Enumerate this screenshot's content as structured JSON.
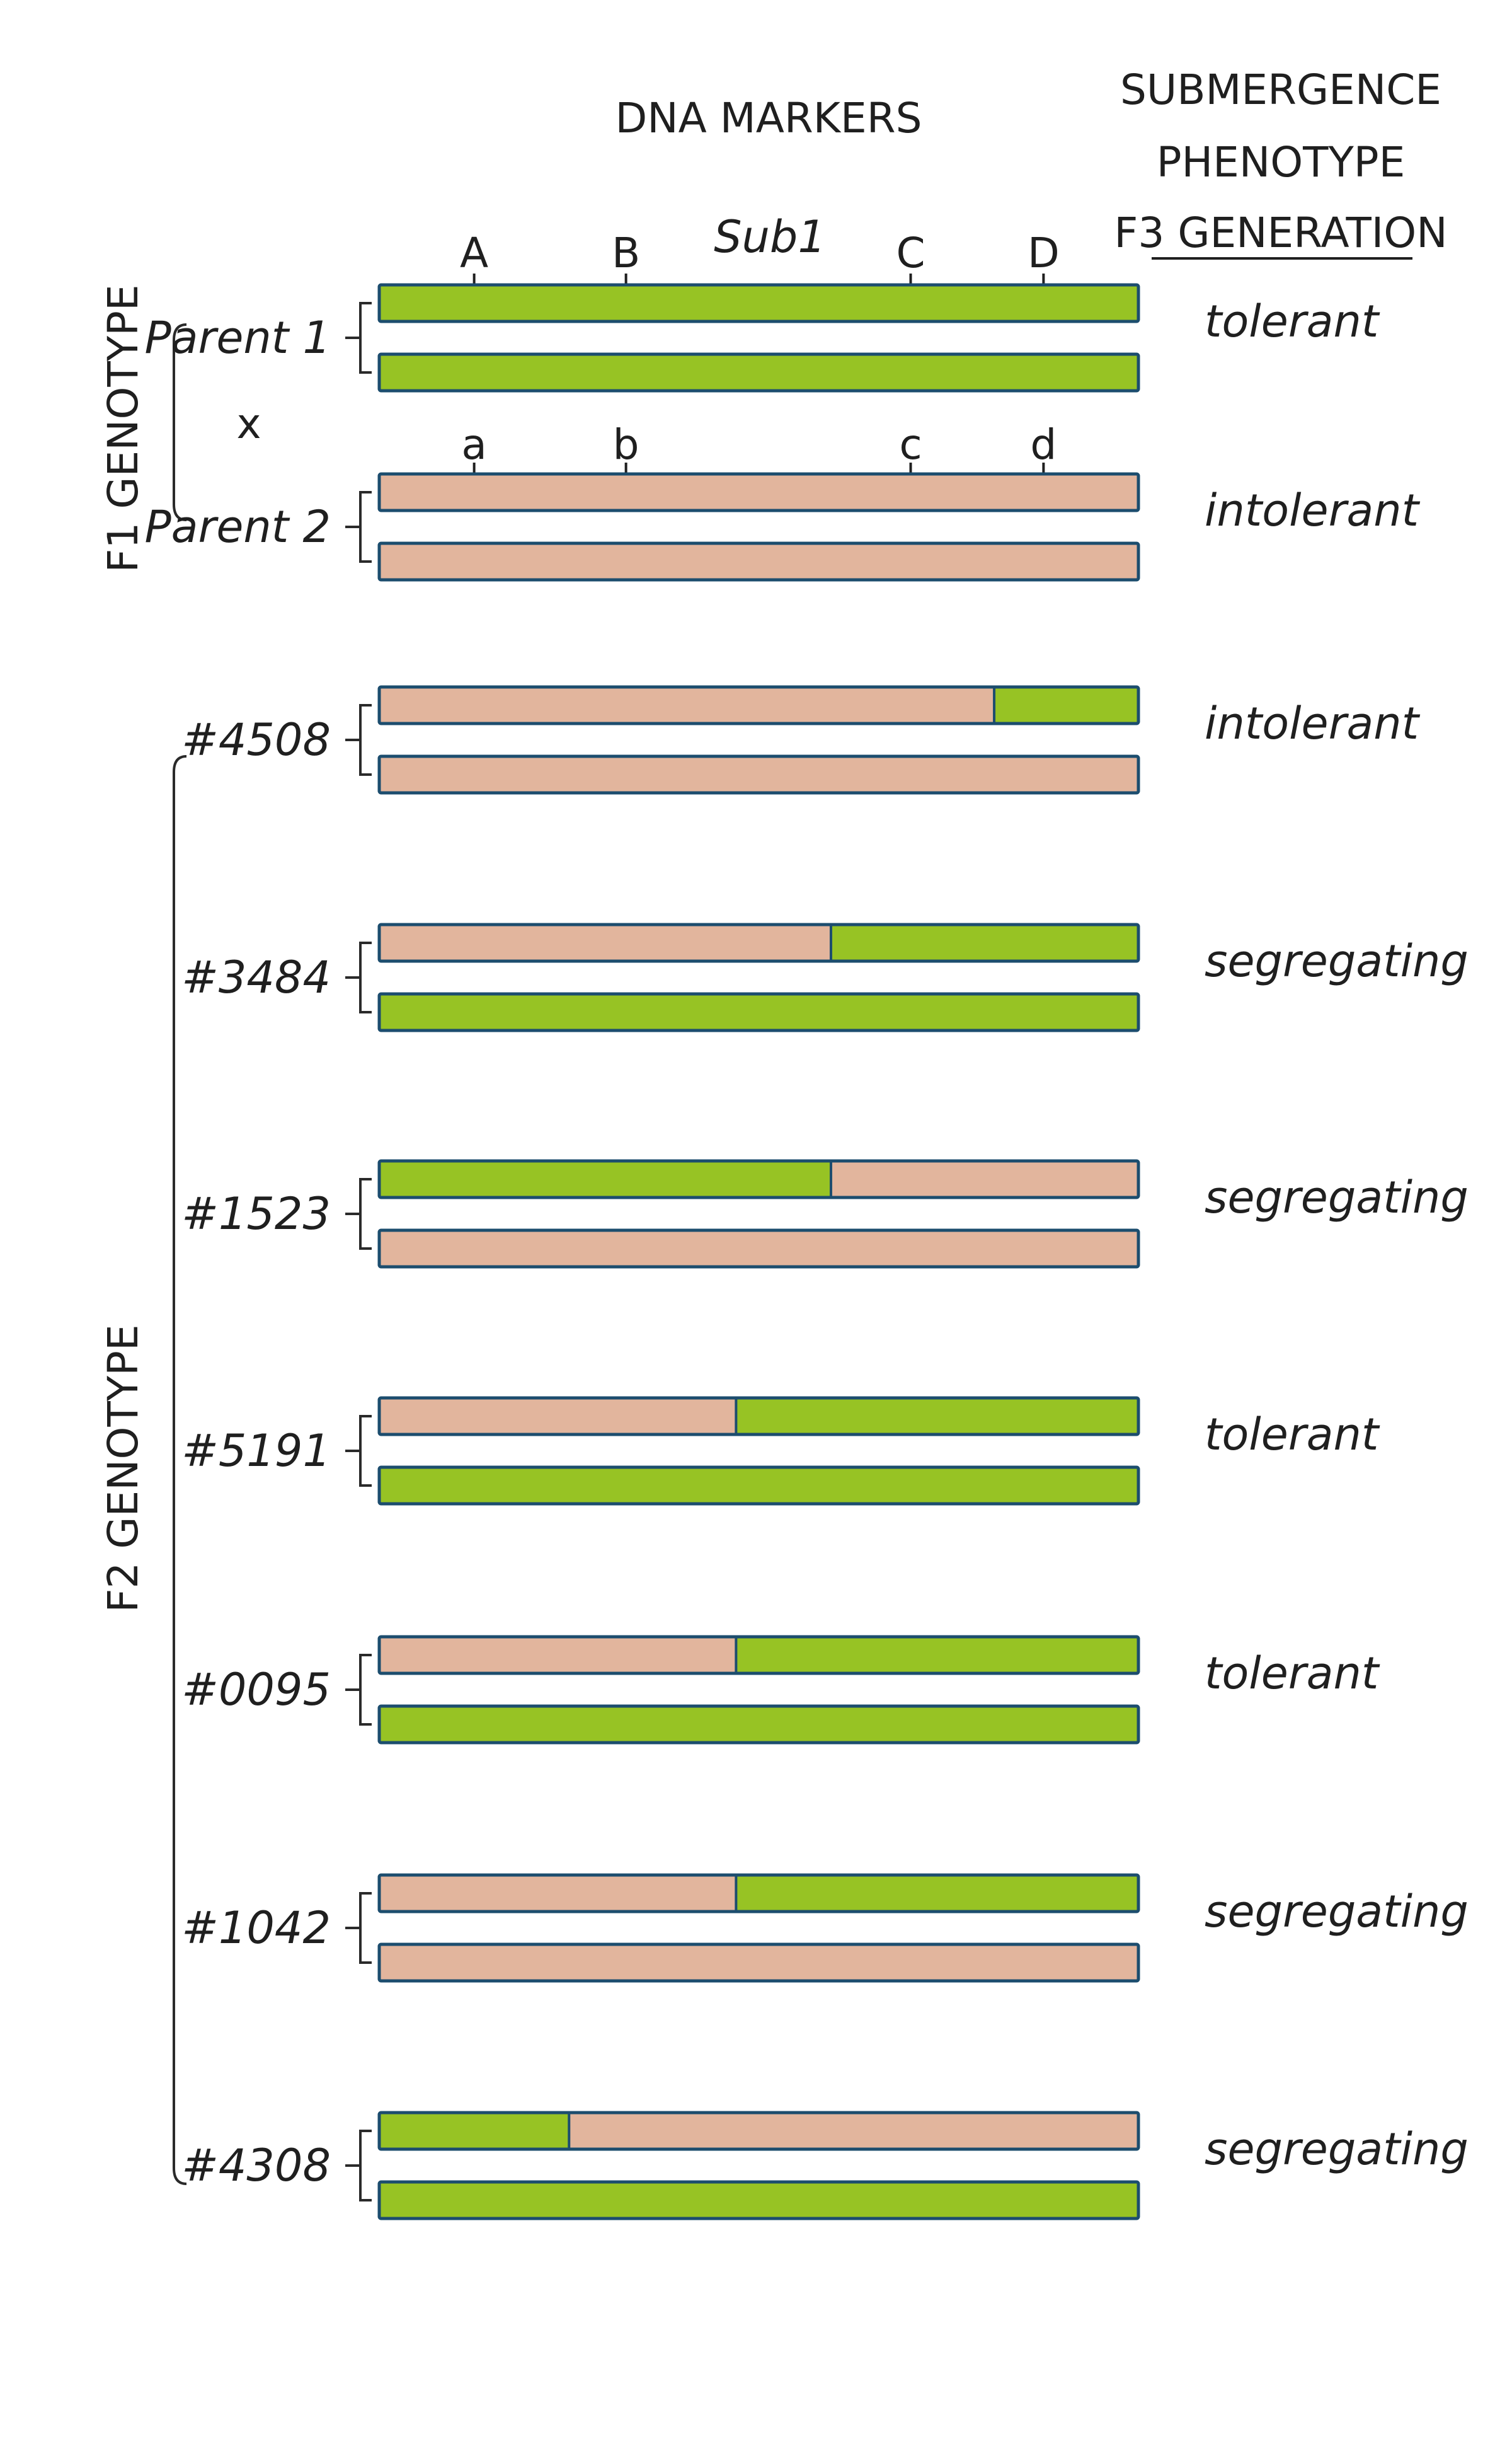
{
  "colors": {
    "tolerant_segment": "#97c324",
    "intolerant_segment": "#e2b59d",
    "chromosome_outline": "#1c4d6e",
    "marker_A": "#ecd92a",
    "marker_B": "#2ab8ab",
    "marker_C": "#4f6aa3",
    "marker_D": "#e53d7a",
    "marker_a": "#ecd92a",
    "marker_b": "#2ab8ab",
    "marker_c": "#4f6aa3",
    "marker_d": "#9b5db0"
  },
  "headers": {
    "dna_markers": "DNA MARKERS",
    "phenotype_line1": "SUBMERGENCE",
    "phenotype_line2": "PHENOTYPE",
    "phenotype_line3": "F3 GENERATION",
    "sub1": "Sub1"
  },
  "groups": {
    "f1": "F1 GENOTYPE",
    "f2": "F2 GENOTYPE",
    "cross": "x"
  },
  "markers": {
    "parent1": [
      {
        "letter": "A",
        "pos": 0.125,
        "color": "#ecd92a"
      },
      {
        "letter": "B",
        "pos": 0.325,
        "color": "#2ab8ab"
      },
      {
        "letter": "C",
        "pos": 0.7,
        "color": "#4f6aa3"
      },
      {
        "letter": "D",
        "pos": 0.875,
        "color": "#e53d7a"
      }
    ],
    "parent2": [
      {
        "letter": "a",
        "pos": 0.125,
        "color": "#ecd92a"
      },
      {
        "letter": "b",
        "pos": 0.325,
        "color": "#2ab8ab"
      },
      {
        "letter": "c",
        "pos": 0.7,
        "color": "#4f6aa3"
      },
      {
        "letter": "d",
        "pos": 0.875,
        "color": "#9b5db0"
      }
    ]
  },
  "individuals": [
    {
      "label": "Parent 1",
      "phenotype": "tolerant",
      "chromosomes": [
        [
          {
            "from": 0,
            "to": 1,
            "type": "tolerant"
          }
        ],
        [
          {
            "from": 0,
            "to": 1,
            "type": "tolerant"
          }
        ]
      ]
    },
    {
      "label": "Parent 2",
      "phenotype": "intolerant",
      "chromosomes": [
        [
          {
            "from": 0,
            "to": 1,
            "type": "intolerant"
          }
        ],
        [
          {
            "from": 0,
            "to": 1,
            "type": "intolerant"
          }
        ]
      ]
    },
    {
      "label": "#4508",
      "phenotype": "intolerant",
      "chromosomes": [
        [
          {
            "from": 0,
            "to": 0.81,
            "type": "intolerant"
          },
          {
            "from": 0.81,
            "to": 1,
            "type": "tolerant"
          }
        ],
        [
          {
            "from": 0,
            "to": 1,
            "type": "intolerant"
          }
        ]
      ]
    },
    {
      "label": "#3484",
      "phenotype": "segregating",
      "chromosomes": [
        [
          {
            "from": 0,
            "to": 0.595,
            "type": "intolerant"
          },
          {
            "from": 0.595,
            "to": 1,
            "type": "tolerant"
          }
        ],
        [
          {
            "from": 0,
            "to": 1,
            "type": "tolerant"
          }
        ]
      ]
    },
    {
      "label": "#1523",
      "phenotype": "segregating",
      "chromosomes": [
        [
          {
            "from": 0,
            "to": 0.595,
            "type": "tolerant"
          },
          {
            "from": 0.595,
            "to": 1,
            "type": "intolerant"
          }
        ],
        [
          {
            "from": 0,
            "to": 1,
            "type": "intolerant"
          }
        ]
      ]
    },
    {
      "label": "#5191",
      "phenotype": "tolerant",
      "chromosomes": [
        [
          {
            "from": 0,
            "to": 0.47,
            "type": "intolerant"
          },
          {
            "from": 0.47,
            "to": 1,
            "type": "tolerant"
          }
        ],
        [
          {
            "from": 0,
            "to": 1,
            "type": "tolerant"
          }
        ]
      ]
    },
    {
      "label": "#0095",
      "phenotype": "tolerant",
      "chromosomes": [
        [
          {
            "from": 0,
            "to": 0.47,
            "type": "intolerant"
          },
          {
            "from": 0.47,
            "to": 1,
            "type": "tolerant"
          }
        ],
        [
          {
            "from": 0,
            "to": 1,
            "type": "tolerant"
          }
        ]
      ]
    },
    {
      "label": "#1042",
      "phenotype": "segregating",
      "chromosomes": [
        [
          {
            "from": 0,
            "to": 0.47,
            "type": "intolerant"
          },
          {
            "from": 0.47,
            "to": 1,
            "type": "tolerant"
          }
        ],
        [
          {
            "from": 0,
            "to": 1,
            "type": "intolerant"
          }
        ]
      ]
    },
    {
      "label": "#4308",
      "phenotype": "segregating",
      "chromosomes": [
        [
          {
            "from": 0,
            "to": 0.25,
            "type": "tolerant"
          },
          {
            "from": 0.25,
            "to": 1,
            "type": "intolerant"
          }
        ],
        [
          {
            "from": 0,
            "to": 1,
            "type": "tolerant"
          }
        ]
      ]
    }
  ]
}
